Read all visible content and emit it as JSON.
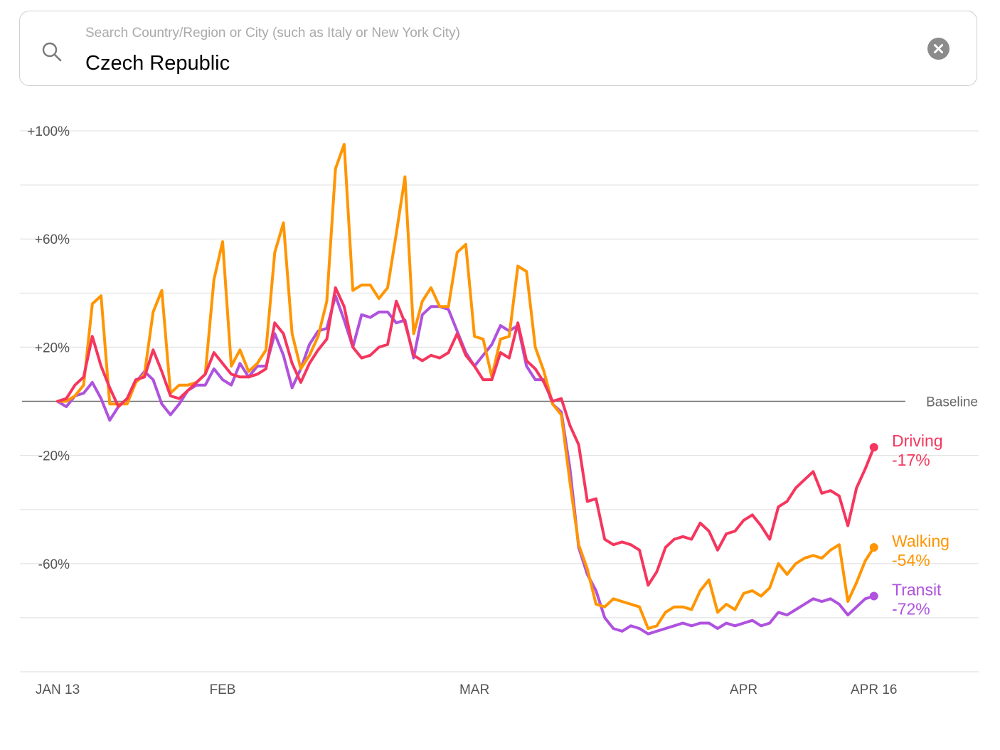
{
  "search": {
    "placeholder": "Search Country/Region or City (such as Italy or New York City)",
    "value": "Czech Republic",
    "search_icon": "search-icon",
    "clear_icon": "clear-icon"
  },
  "chart_data": {
    "type": "line",
    "title": "",
    "xlabel": "",
    "ylabel": "",
    "ylim": [
      -100,
      100
    ],
    "yticks": [
      {
        "value": 100,
        "label": "+100%"
      },
      {
        "value": 60,
        "label": "+60%"
      },
      {
        "value": 20,
        "label": "+20%"
      },
      {
        "value": -20,
        "label": "-20%"
      },
      {
        "value": -60,
        "label": "-60%"
      }
    ],
    "gridlines": [
      100,
      80,
      60,
      40,
      20,
      -20,
      -40,
      -60,
      -80,
      -100
    ],
    "baseline_label": "Baseline",
    "xticks": [
      {
        "day": 0,
        "label": "JAN 13"
      },
      {
        "day": 19,
        "label": "FEB"
      },
      {
        "day": 48,
        "label": "MAR"
      },
      {
        "day": 79,
        "label": "APR"
      },
      {
        "day": 94,
        "label": "APR 16"
      }
    ],
    "day_range": [
      0,
      94
    ],
    "series": [
      {
        "name": "Driving",
        "end_label": "-17%",
        "color": "#f5365e",
        "values": [
          0,
          1,
          6,
          9,
          24,
          13,
          5,
          -2,
          1,
          8,
          9,
          19,
          11,
          2,
          1,
          4,
          7,
          10,
          18,
          14,
          10,
          9,
          9,
          10,
          12,
          29,
          25,
          14,
          7,
          14,
          19,
          23,
          42,
          35,
          20,
          16,
          17,
          20,
          21,
          37,
          29,
          17,
          15,
          17,
          16,
          18,
          25,
          17,
          13,
          8,
          8,
          18,
          16,
          29,
          15,
          12,
          7,
          0,
          1,
          -9,
          -16,
          -37,
          -36,
          -51,
          -53,
          -52,
          -53,
          -55,
          -68,
          -63,
          -54,
          -51,
          -50,
          -51,
          -45,
          -48,
          -55,
          -49,
          -48,
          -44,
          -42,
          -46,
          -51,
          -39,
          -37,
          -32,
          -29,
          -26,
          -34,
          -33,
          -35,
          -46,
          -32,
          -25,
          -17
        ]
      },
      {
        "name": "Walking",
        "end_label": "-54%",
        "color": "#ff9501",
        "values": [
          0,
          0,
          2,
          6,
          36,
          39,
          -1,
          -1,
          -1,
          7,
          10,
          33,
          41,
          3,
          6,
          6,
          7,
          10,
          45,
          59,
          13,
          19,
          11,
          14,
          19,
          55,
          66,
          25,
          12,
          17,
          24,
          37,
          86,
          95,
          41,
          43,
          43,
          38,
          42,
          62,
          83,
          25,
          37,
          42,
          35,
          35,
          55,
          58,
          24,
          23,
          9,
          23,
          24,
          50,
          48,
          20,
          11,
          -1,
          -5,
          -30,
          -53,
          -62,
          -75,
          -76,
          -73,
          -74,
          -75,
          -76,
          -84,
          -83,
          -78,
          -76,
          -76,
          -77,
          -70,
          -66,
          -78,
          -75,
          -77,
          -71,
          -70,
          -72,
          -69,
          -60,
          -64,
          -60,
          -58,
          -57,
          -58,
          -55,
          -53,
          -74,
          -67,
          -59,
          -54
        ]
      },
      {
        "name": "Transit",
        "end_label": "-72%",
        "color": "#af52de",
        "values": [
          0,
          -2,
          2,
          3,
          7,
          1,
          -7,
          -2,
          1,
          7,
          11,
          8,
          -1,
          -5,
          -1,
          4,
          6,
          6,
          12,
          8,
          6,
          14,
          9,
          13,
          13,
          25,
          17,
          5,
          12,
          21,
          26,
          27,
          39,
          30,
          20,
          32,
          31,
          33,
          33,
          29,
          30,
          16,
          32,
          35,
          35,
          34,
          26,
          18,
          13,
          17,
          21,
          28,
          26,
          28,
          13,
          8,
          8,
          -1,
          -4,
          -25,
          -54,
          -64,
          -70,
          -80,
          -84,
          -85,
          -83,
          -84,
          -86,
          -85,
          -84,
          -83,
          -82,
          -83,
          -82,
          -82,
          -84,
          -82,
          -83,
          -82,
          -81,
          -83,
          -82,
          -78,
          -79,
          -77,
          -75,
          -73,
          -74,
          -73,
          -75,
          -79,
          -76,
          -73,
          -72
        ]
      }
    ]
  }
}
